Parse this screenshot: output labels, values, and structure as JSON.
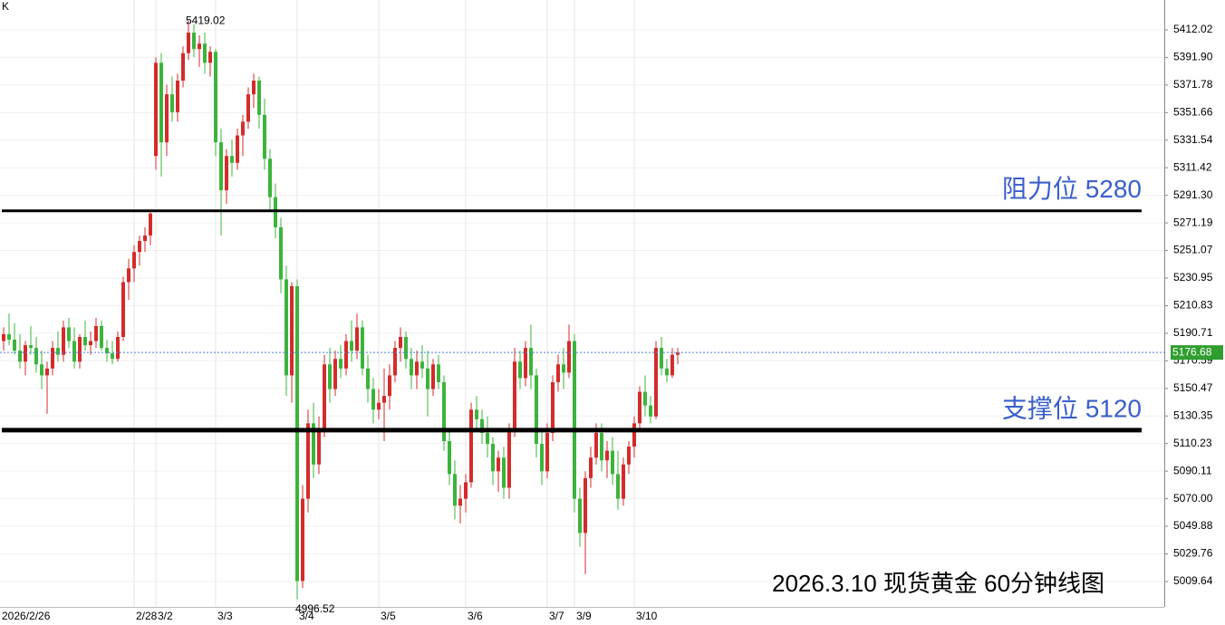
{
  "chart_data": {
    "type": "candlestick",
    "title": "2026.3.10 现货黄金 60分钟线图",
    "corner_label": "K",
    "up_color": "#d42b2b",
    "down_color": "#3cb43c",
    "grid": true,
    "ylim": [
      4991.1,
      5433.8
    ],
    "yticks": [
      5412.02,
      {
        "value": 5391.9,
        "label": "5391.90"
      },
      5371.78,
      5351.66,
      5331.54,
      5311.42,
      {
        "value": 5291.3,
        "label": "5291.30"
      },
      5271.19,
      5251.07,
      5230.95,
      5210.83,
      5190.71,
      5170.59,
      5150.47,
      5130.35,
      5110.23,
      5090.11,
      {
        "value": 5070,
        "label": "5070.00"
      },
      5049.88,
      5029.76,
      5009.64
    ],
    "levels": [
      {
        "value": 5280,
        "label": "阻力位 5280"
      },
      {
        "value": 5120,
        "label": "支撑位 5120"
      }
    ],
    "categories": [
      "2026/2/26",
      null,
      null,
      null,
      null,
      null,
      null,
      null,
      null,
      null,
      null,
      null,
      null,
      null,
      null,
      null,
      null,
      null,
      null,
      null,
      null,
      null,
      null,
      null,
      "2/28",
      null,
      null,
      null,
      "3/2",
      null,
      null,
      null,
      null,
      null,
      null,
      null,
      null,
      null,
      null,
      "3/3",
      null,
      null,
      null,
      null,
      null,
      null,
      null,
      null,
      null,
      null,
      null,
      null,
      null,
      null,
      "3/4",
      null,
      null,
      null,
      null,
      null,
      null,
      null,
      null,
      null,
      null,
      null,
      null,
      null,
      null,
      "3/5",
      null,
      null,
      null,
      null,
      null,
      null,
      null,
      null,
      null,
      null,
      null,
      null,
      null,
      null,
      null,
      "3/6",
      null,
      null,
      null,
      null,
      null,
      null,
      null,
      null,
      null,
      null,
      null,
      null,
      null,
      null,
      "3/7",
      null,
      null,
      null,
      null,
      "3/9",
      null,
      null,
      null,
      null,
      null,
      null,
      null,
      null,
      null,
      null,
      "3/10",
      null,
      null,
      null,
      null,
      null,
      null,
      null,
      null
    ],
    "candles": [
      [
        5185,
        5195,
        5178,
        5190
      ],
      [
        5190,
        5205,
        5182,
        5186
      ],
      [
        5186,
        5198,
        5175,
        5178
      ],
      [
        5178,
        5190,
        5165,
        5170
      ],
      [
        5170,
        5185,
        5160,
        5182
      ],
      [
        5182,
        5196,
        5175,
        5180
      ],
      [
        5180,
        5188,
        5162,
        5168
      ],
      [
        5168,
        5178,
        5150,
        5160
      ],
      [
        5160,
        5170,
        5132,
        5165
      ],
      [
        5165,
        5185,
        5160,
        5180
      ],
      [
        5180,
        5192,
        5170,
        5175
      ],
      [
        5175,
        5200,
        5170,
        5195
      ],
      [
        5195,
        5202,
        5180,
        5185
      ],
      [
        5185,
        5195,
        5165,
        5170
      ],
      [
        5170,
        5190,
        5165,
        5188
      ],
      [
        5188,
        5200,
        5178,
        5182
      ],
      [
        5182,
        5192,
        5175,
        5185
      ],
      [
        5185,
        5202,
        5180,
        5196
      ],
      [
        5196,
        5200,
        5178,
        5180
      ],
      [
        5180,
        5186,
        5170,
        5176
      ],
      [
        5176,
        5185,
        5168,
        5172
      ],
      [
        5172,
        5192,
        5170,
        5188
      ],
      [
        5188,
        5232,
        5185,
        5228
      ],
      [
        5228,
        5245,
        5215,
        5238
      ],
      [
        5238,
        5255,
        5228,
        5250
      ],
      [
        5250,
        5262,
        5240,
        5258
      ],
      [
        5258,
        5268,
        5250,
        5262
      ],
      [
        5262,
        5280,
        5255,
        5278
      ],
      [
        5320,
        5392,
        5310,
        5388
      ],
      [
        5388,
        5395,
        5305,
        5330
      ],
      [
        5330,
        5372,
        5320,
        5365
      ],
      [
        5365,
        5378,
        5345,
        5352
      ],
      [
        5352,
        5380,
        5345,
        5375
      ],
      [
        5375,
        5400,
        5370,
        5395
      ],
      [
        5395,
        5419.02,
        5390,
        5410
      ],
      [
        5410,
        5416,
        5392,
        5398
      ],
      [
        5398,
        5408,
        5385,
        5402
      ],
      [
        5402,
        5410,
        5380,
        5388
      ],
      [
        5388,
        5400,
        5378,
        5396
      ],
      [
        5396,
        5398,
        5320,
        5330
      ],
      [
        5330,
        5340,
        5262,
        5295
      ],
      [
        5295,
        5325,
        5285,
        5320
      ],
      [
        5320,
        5332,
        5305,
        5315
      ],
      [
        5315,
        5340,
        5310,
        5335
      ],
      [
        5335,
        5350,
        5320,
        5345
      ],
      [
        5345,
        5370,
        5340,
        5365
      ],
      [
        5365,
        5380,
        5355,
        5375
      ],
      [
        5375,
        5378,
        5340,
        5350
      ],
      [
        5350,
        5362,
        5310,
        5318
      ],
      [
        5318,
        5325,
        5280,
        5290
      ],
      [
        5290,
        5300,
        5260,
        5268
      ],
      [
        5268,
        5275,
        5220,
        5230
      ],
      [
        5230,
        5240,
        5145,
        5160
      ],
      [
        5160,
        5228,
        5140,
        5225
      ],
      [
        5225,
        5230,
        4996.52,
        5010
      ],
      [
        5010,
        5080,
        5005,
        5070
      ],
      [
        5070,
        5135,
        5060,
        5125
      ],
      [
        5125,
        5140,
        5085,
        5095
      ],
      [
        5095,
        5130,
        5088,
        5120
      ],
      [
        5120,
        5175,
        5115,
        5168
      ],
      [
        5168,
        5180,
        5140,
        5150
      ],
      [
        5150,
        5178,
        5145,
        5172
      ],
      [
        5172,
        5182,
        5158,
        5165
      ],
      [
        5165,
        5190,
        5160,
        5185
      ],
      [
        5185,
        5200,
        5170,
        5178
      ],
      [
        5178,
        5205,
        5172,
        5195
      ],
      [
        5195,
        5200,
        5160,
        5165
      ],
      [
        5165,
        5175,
        5140,
        5150
      ],
      [
        5150,
        5158,
        5125,
        5135
      ],
      [
        5135,
        5150,
        5128,
        5140
      ],
      [
        5140,
        5165,
        5112,
        5145
      ],
      [
        5145,
        5168,
        5135,
        5160
      ],
      [
        5160,
        5185,
        5155,
        5180
      ],
      [
        5180,
        5195,
        5170,
        5188
      ],
      [
        5188,
        5192,
        5165,
        5172
      ],
      [
        5172,
        5180,
        5150,
        5160
      ],
      [
        5160,
        5178,
        5150,
        5170
      ],
      [
        5170,
        5182,
        5158,
        5165
      ],
      [
        5165,
        5178,
        5130,
        5150
      ],
      [
        5150,
        5172,
        5145,
        5168
      ],
      [
        5168,
        5175,
        5150,
        5155
      ],
      [
        5155,
        5160,
        5105,
        5112
      ],
      [
        5112,
        5120,
        5080,
        5088
      ],
      [
        5088,
        5098,
        5055,
        5065
      ],
      [
        5065,
        5080,
        5052,
        5070
      ],
      [
        5070,
        5088,
        5060,
        5082
      ],
      [
        5082,
        5140,
        5078,
        5135
      ],
      [
        5135,
        5145,
        5120,
        5128
      ],
      [
        5128,
        5135,
        5110,
        5118
      ],
      [
        5118,
        5130,
        5100,
        5110
      ],
      [
        5110,
        5115,
        5080,
        5090
      ],
      [
        5090,
        5105,
        5075,
        5100
      ],
      [
        5100,
        5108,
        5070,
        5078
      ],
      [
        5078,
        5125,
        5070,
        5120
      ],
      [
        5120,
        5180,
        5115,
        5170
      ],
      [
        5170,
        5178,
        5150,
        5158
      ],
      [
        5158,
        5185,
        5152,
        5180
      ],
      [
        5180,
        5197,
        5150,
        5160
      ],
      [
        5160,
        5165,
        5100,
        5110
      ],
      [
        5110,
        5120,
        5080,
        5090
      ],
      [
        5090,
        5125,
        5085,
        5118
      ],
      [
        5118,
        5160,
        5112,
        5155
      ],
      [
        5155,
        5175,
        5148,
        5168
      ],
      [
        5168,
        5180,
        5150,
        5162
      ],
      [
        5162,
        5197,
        5158,
        5185
      ],
      [
        5185,
        5190,
        5060,
        5070
      ],
      [
        5070,
        5078,
        5035,
        5045
      ],
      [
        5045,
        5090,
        5015,
        5085
      ],
      [
        5085,
        5108,
        5078,
        5100
      ],
      [
        5100,
        5125,
        5095,
        5118
      ],
      [
        5118,
        5125,
        5090,
        5098
      ],
      [
        5098,
        5112,
        5085,
        5105
      ],
      [
        5105,
        5115,
        5080,
        5088
      ],
      [
        5088,
        5105,
        5062,
        5070
      ],
      [
        5070,
        5100,
        5065,
        5095
      ],
      [
        5095,
        5112,
        5088,
        5108
      ],
      [
        5108,
        5130,
        5100,
        5125
      ],
      [
        5125,
        5152,
        5120,
        5148
      ],
      [
        5148,
        5160,
        5130,
        5138
      ],
      [
        5138,
        5145,
        5125,
        5130
      ],
      [
        5130,
        5185,
        5128,
        5180
      ],
      [
        5180,
        5188,
        5160,
        5165
      ],
      [
        5165,
        5172,
        5155,
        5160
      ],
      [
        5160,
        5180,
        5158,
        5175
      ],
      [
        5175,
        5180,
        5168,
        5176.68
      ]
    ]
  }
}
